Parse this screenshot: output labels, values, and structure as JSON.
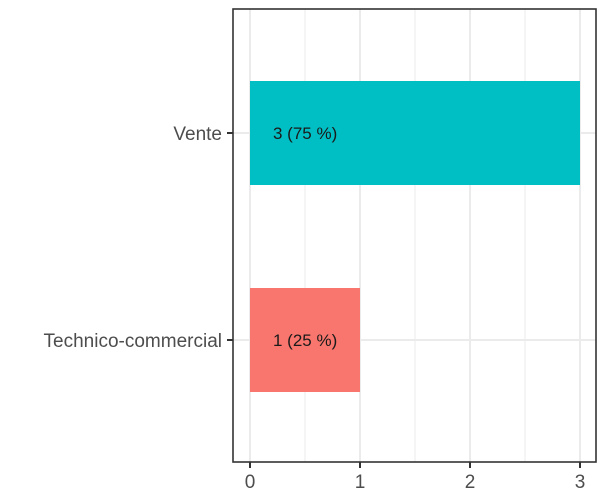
{
  "chart_data": {
    "type": "bar",
    "orientation": "horizontal",
    "categories": [
      "Vente",
      "Technico-commercial"
    ],
    "values": [
      3,
      1
    ],
    "labels": [
      "3 (75 %)",
      "1 (25 %)"
    ],
    "colors": [
      "#00BFC4",
      "#F8766D"
    ],
    "title": "",
    "xlabel": "",
    "ylabel": "",
    "xlim": [
      0,
      3
    ],
    "x_ticks": [
      0,
      1,
      2,
      3
    ],
    "grid": true,
    "legend": "none"
  }
}
